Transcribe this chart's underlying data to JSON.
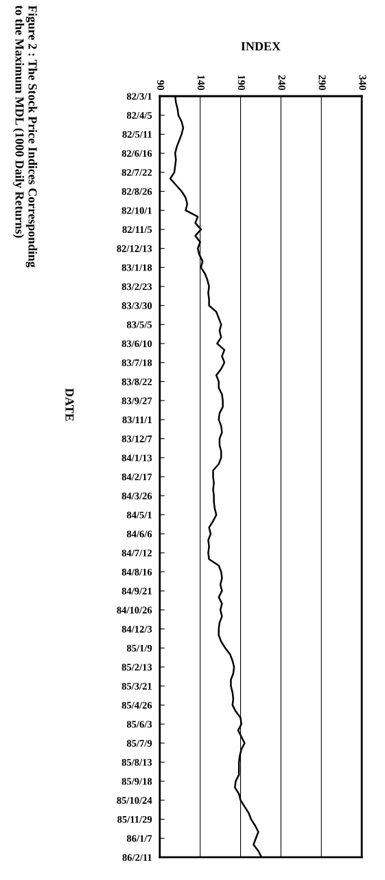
{
  "chart_data": {
    "type": "line",
    "title": "Figure 2 : The Stock Price Indices Corresponding\nto the Maximum MDL (1000 Daily Returns)",
    "xlabel": "INDEX",
    "ylabel": "DATE",
    "orientation": "horizontal",
    "categories": [
      "82/3/1",
      null,
      null,
      "82/4/5",
      null,
      null,
      "82/5/11",
      null,
      null,
      "82/6/16",
      null,
      null,
      "82/7/22",
      null,
      null,
      "82/8/26",
      null,
      null,
      "82/10/1",
      null,
      null,
      "82/11/5",
      null,
      null,
      "82/12/13",
      null,
      null,
      "83/1/18",
      null,
      null,
      "83/2/23",
      null,
      null,
      "83/3/30",
      null,
      null,
      "83/5/5",
      null,
      null,
      "83/6/10",
      null,
      null,
      "83/7/18",
      null,
      null,
      "83/8/22",
      null,
      null,
      "83/9/27",
      null,
      null,
      "83/11/1",
      null,
      null,
      "83/12/7",
      null,
      null,
      "84/1/13",
      null,
      null,
      "84/2/17",
      null,
      null,
      "84/3/26",
      null,
      null,
      "84/5/1",
      null,
      null,
      "84/6/6",
      null,
      null,
      "84/7/12",
      null,
      null,
      "84/8/16",
      null,
      null,
      "84/9/21",
      null,
      null,
      "84/10/26",
      null,
      null,
      "84/12/3",
      null,
      null,
      "85/1/9",
      null,
      null,
      "85/2/13",
      null,
      null,
      "85/3/21",
      null,
      null,
      "85/4/26",
      null,
      null,
      "85/6/3",
      null,
      null,
      "85/7/9",
      null,
      null,
      "85/8/13",
      null,
      null,
      "85/9/18",
      null,
      null,
      "85/10/24",
      null,
      null,
      "85/11/29",
      null,
      null,
      "86/1/7",
      null,
      null,
      "86/2/11"
    ],
    "series": [
      {
        "color": "#000000",
        "values": [
          109,
          110,
          112,
          113,
          117,
          119,
          117,
          114,
          111,
          109,
          110,
          109,
          108,
          103,
          110,
          117,
          122,
          124,
          122,
          137,
          134,
          141,
          134,
          140,
          137,
          139,
          143,
          141,
          146,
          149,
          151,
          150,
          151,
          151,
          160,
          163,
          166,
          164,
          166,
          161,
          170,
          167,
          170,
          166,
          160,
          163,
          163,
          167,
          168,
          168,
          164,
          163,
          166,
          167,
          164,
          164,
          166,
          166,
          163,
          156,
          156,
          157,
          156,
          157,
          157,
          158,
          160,
          156,
          151,
          153,
          150,
          151,
          150,
          151,
          163,
          166,
          167,
          165,
          167,
          163,
          167,
          165,
          167,
          164,
          163,
          163,
          166,
          171,
          177,
          180,
          182,
          181,
          178,
          178,
          180,
          181,
          180,
          184,
          190,
          191,
          187,
          191,
          195,
          191,
          189,
          188,
          188,
          188,
          184,
          183,
          188,
          190,
          195,
          200,
          203,
          208,
          212,
          209,
          206,
          212,
          216
        ]
      }
    ],
    "xlim": [
      90,
      340
    ],
    "xticks": [
      90,
      140,
      190,
      240,
      290,
      340
    ],
    "grid": "x",
    "line_style": "solid"
  }
}
